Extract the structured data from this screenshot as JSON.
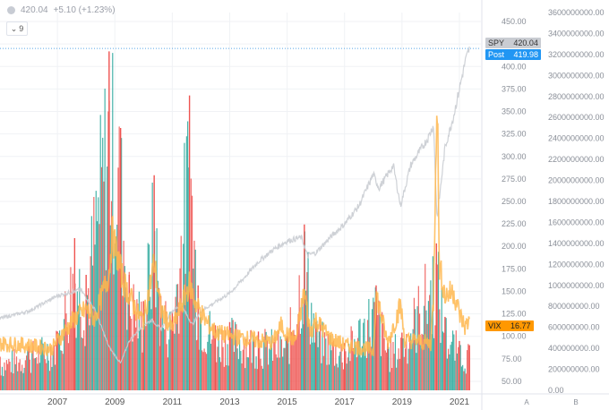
{
  "header": {
    "spy_last": "420.04",
    "spy_change": "+5.10 (+1.23%)"
  },
  "collapse_button": {
    "label": "9",
    "icon": "chevron-down-icon"
  },
  "badges": {
    "spy": {
      "name": "SPY",
      "value": "420.04",
      "color": "#c9ccd2"
    },
    "post": {
      "name": "Post",
      "value": "419.98",
      "color": "#2196f3"
    },
    "vix": {
      "name": "VIX",
      "value": "16.77",
      "color": "#ff9800"
    }
  },
  "axis_labels": {
    "a": "A",
    "b": "B"
  },
  "colors": {
    "spy_line": "#c9ccd2",
    "vix_line": "#ffb74d",
    "vol_up": "#26a69a",
    "vol_down": "#ef5350",
    "grid": "#f0f2f5",
    "text": "#8a8f98"
  },
  "chart_data": {
    "type": "line",
    "x_ticks": [
      "2007",
      "2009",
      "2011",
      "2013",
      "2015",
      "2017",
      "2019",
      "2021"
    ],
    "y_axis_a": {
      "ticks": [
        "50.00",
        "75.00",
        "100.00",
        "125.00",
        "150.00",
        "175.00",
        "200.00",
        "225.00",
        "250.00",
        "275.00",
        "300.00",
        "325.00",
        "350.00",
        "375.00",
        "400.00",
        "425.00",
        "450.00"
      ],
      "range": [
        40,
        460
      ]
    },
    "y_axis_b": {
      "ticks": [
        "0.00",
        "200000000.00",
        "400000000.00",
        "600000000.00",
        "800000000.00",
        "1000000000.00",
        "1200000000.00",
        "1400000000.00",
        "1600000000.00",
        "1800000000.00",
        "2000000000.00",
        "2200000000.00",
        "2400000000.00",
        "2600000000.00",
        "2800000000.00",
        "3000000000.00",
        "3200000000.00",
        "3400000000.00",
        "3600000000.00"
      ],
      "range": [
        0,
        3600000000
      ]
    },
    "series": [
      {
        "name": "SPY",
        "axis": "A",
        "x": [
          2005.0,
          2006.0,
          2007.0,
          2007.8,
          2008.3,
          2008.8,
          2009.2,
          2009.5,
          2010.0,
          2010.3,
          2010.6,
          2011.0,
          2011.3,
          2011.7,
          2012.0,
          2012.5,
          2013.0,
          2013.5,
          2014.0,
          2014.5,
          2015.0,
          2015.5,
          2015.7,
          2016.0,
          2016.5,
          2017.0,
          2017.5,
          2018.0,
          2018.2,
          2018.7,
          2018.95,
          2019.3,
          2019.9,
          2020.1,
          2020.22,
          2020.5,
          2020.8,
          2021.0,
          2021.2,
          2021.35
        ],
        "values": [
          120,
          128,
          145,
          152,
          130,
          88,
          70,
          95,
          113,
          118,
          108,
          128,
          135,
          113,
          128,
          138,
          148,
          165,
          183,
          196,
          206,
          210,
          190,
          193,
          210,
          225,
          245,
          280,
          265,
          290,
          245,
          290,
          320,
          335,
          230,
          310,
          345,
          375,
          405,
          420
        ]
      },
      {
        "name": "VIX",
        "axis": "A",
        "x": [
          2005.0,
          2006.0,
          2006.8,
          2007.0,
          2007.6,
          2008.0,
          2008.3,
          2008.8,
          2008.9,
          2009.3,
          2009.8,
          2010.0,
          2010.37,
          2010.6,
          2011.0,
          2011.6,
          2011.8,
          2012.2,
          2012.5,
          2013.0,
          2013.5,
          2014.0,
          2014.5,
          2014.8,
          2015.0,
          2015.3,
          2015.6,
          2015.8,
          2016.0,
          2016.5,
          2017.0,
          2017.5,
          2018.0,
          2018.1,
          2018.5,
          2018.95,
          2019.1,
          2019.5,
          2020.0,
          2020.1,
          2020.22,
          2020.3,
          2020.5,
          2020.8,
          2021.0,
          2021.2,
          2021.35
        ],
        "values": [
          92,
          90,
          86,
          95,
          120,
          130,
          120,
          170,
          215,
          160,
          125,
          118,
          182,
          130,
          108,
          158,
          138,
          115,
          105,
          100,
          98,
          95,
          93,
          112,
          102,
          95,
          150,
          105,
          118,
          98,
          90,
          88,
          84,
          148,
          92,
          135,
          95,
          95,
          92,
          140,
          390,
          180,
          145,
          150,
          125,
          110,
          118
        ]
      }
    ],
    "volume": {
      "x": [
        2005.0,
        2006.0,
        2007.0,
        2007.6,
        2008.0,
        2008.8,
        2009.2,
        2009.5,
        2010.0,
        2010.37,
        2010.6,
        2011.0,
        2011.6,
        2011.9,
        2012.5,
        2013.0,
        2014.0,
        2015.0,
        2015.6,
        2016.0,
        2017.0,
        2018.1,
        2018.5,
        2019.0,
        2020.2,
        2020.5,
        2021.0,
        2021.35
      ],
      "values": [
        320000000,
        420000000,
        560000000,
        1450000000,
        1100000000,
        3230000000,
        2500000000,
        1100000000,
        850000000,
        2050000000,
        900000000,
        750000000,
        2810000000,
        1000000000,
        620000000,
        650000000,
        560000000,
        520000000,
        1580000000,
        650000000,
        450000000,
        1000000000,
        450000000,
        550000000,
        1400000000,
        700000000,
        470000000,
        430000000
      ]
    }
  }
}
